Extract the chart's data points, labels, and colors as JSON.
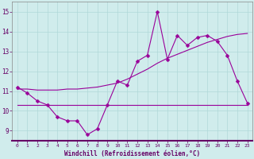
{
  "x": [
    0,
    1,
    2,
    3,
    4,
    5,
    6,
    7,
    8,
    9,
    10,
    11,
    12,
    13,
    14,
    15,
    16,
    17,
    18,
    19,
    20,
    21,
    22,
    23
  ],
  "y_main": [
    11.2,
    10.9,
    10.5,
    10.3,
    9.7,
    9.5,
    9.5,
    8.8,
    9.1,
    10.3,
    11.5,
    11.3,
    12.5,
    12.8,
    15.0,
    12.6,
    13.8,
    13.3,
    13.7,
    13.8,
    13.5,
    12.8,
    11.5,
    10.4
  ],
  "y_trend": [
    11.1,
    11.1,
    11.05,
    11.05,
    11.05,
    11.1,
    11.1,
    11.15,
    11.2,
    11.3,
    11.4,
    11.6,
    11.85,
    12.1,
    12.4,
    12.65,
    12.85,
    13.05,
    13.25,
    13.45,
    13.6,
    13.75,
    13.85,
    13.9
  ],
  "y_flat": [
    10.3,
    10.3,
    10.3,
    10.3,
    10.3,
    10.3,
    10.3,
    10.3,
    10.3,
    10.3,
    10.3,
    10.3,
    10.3,
    10.3,
    10.3,
    10.3,
    10.3,
    10.3,
    10.3,
    10.3,
    10.3,
    10.3,
    10.3,
    10.3
  ],
  "line_color": "#990099",
  "bg_color": "#d0ecec",
  "grid_color": "#b0d8d8",
  "axis_bg": "#d0ecec",
  "xlabel": "Windchill (Refroidissement éolien,°C)",
  "ylim": [
    8.5,
    15.5
  ],
  "xlim": [
    -0.5,
    23.5
  ],
  "yticks": [
    9,
    10,
    11,
    12,
    13,
    14,
    15
  ],
  "xticks": [
    0,
    1,
    2,
    3,
    4,
    5,
    6,
    7,
    8,
    9,
    10,
    11,
    12,
    13,
    14,
    15,
    16,
    17,
    18,
    19,
    20,
    21,
    22,
    23
  ],
  "marker": "D",
  "markersize": 2.5
}
